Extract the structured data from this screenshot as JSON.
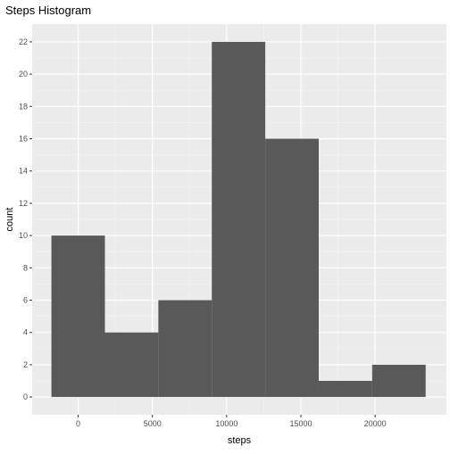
{
  "chart_data": {
    "type": "bar",
    "title": "Steps Histogram",
    "xlabel": "steps",
    "ylabel": "count",
    "bins": [
      {
        "x0": -1800,
        "x1": 1800,
        "count": 10
      },
      {
        "x0": 1800,
        "x1": 5400,
        "count": 4
      },
      {
        "x0": 5400,
        "x1": 9000,
        "count": 6
      },
      {
        "x0": 9000,
        "x1": 12600,
        "count": 22
      },
      {
        "x0": 12600,
        "x1": 16200,
        "count": 16
      },
      {
        "x0": 16200,
        "x1": 19800,
        "count": 1
      },
      {
        "x0": 19800,
        "x1": 23400,
        "count": 2
      }
    ],
    "xlim": [
      -3100,
      24800
    ],
    "ylim": [
      -1.1,
      23.1
    ],
    "xticks": [
      0,
      5000,
      10000,
      15000,
      20000
    ],
    "yticks": [
      0,
      2,
      4,
      6,
      8,
      10,
      12,
      14,
      16,
      18,
      20,
      22
    ],
    "grid": true,
    "colors": {
      "bar": "#595959",
      "panel": "#ebebeb",
      "grid_major": "#ffffff"
    }
  }
}
